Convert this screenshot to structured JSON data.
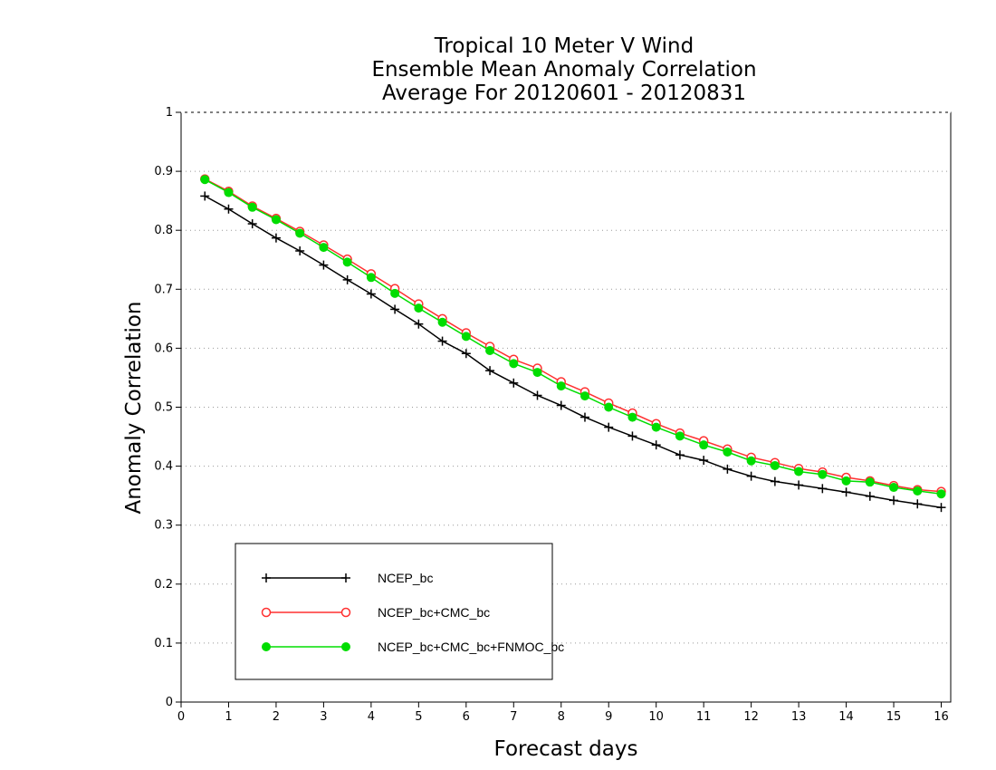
{
  "chart_data": {
    "type": "line",
    "title_lines": [
      "Tropical 10 Meter V Wind",
      "Ensemble Mean Anomaly Correlation",
      "Average For 20120601 - 20120831"
    ],
    "xlabel": "Forecast days",
    "ylabel": "Anomaly Correlation",
    "xlim": [
      0,
      16.2
    ],
    "ylim": [
      0,
      1
    ],
    "xticks": [
      "0",
      "1",
      "2",
      "3",
      "4",
      "5",
      "6",
      "7",
      "8",
      "9",
      "10",
      "11",
      "12",
      "13",
      "14",
      "15",
      "16"
    ],
    "yticks": [
      "0",
      "0.1",
      "0.2",
      "0.3",
      "0.4",
      "0.5",
      "0.6",
      "0.7",
      "0.8",
      "0.9",
      "1"
    ],
    "grid": "horizontal dotted",
    "legend_position": "bottom-left",
    "x": [
      0.5,
      1,
      1.5,
      2,
      2.5,
      3,
      3.5,
      4,
      4.5,
      5,
      5.5,
      6,
      6.5,
      7,
      7.5,
      8,
      8.5,
      9,
      9.5,
      10,
      10.5,
      11,
      11.5,
      12,
      12.5,
      13,
      13.5,
      14,
      14.5,
      15,
      15.5,
      16
    ],
    "series": [
      {
        "name": "NCEP_bc",
        "color": "#000000",
        "marker": "plus",
        "values": [
          0.858,
          0.836,
          0.811,
          0.787,
          0.765,
          0.741,
          0.716,
          0.692,
          0.666,
          0.641,
          0.612,
          0.591,
          0.562,
          0.541,
          0.52,
          0.503,
          0.483,
          0.466,
          0.451,
          0.436,
          0.419,
          0.41,
          0.395,
          0.383,
          0.374,
          0.368,
          0.362,
          0.356,
          0.349,
          0.342,
          0.336,
          0.33
        ]
      },
      {
        "name": "NCEP_bc+CMC_bc",
        "color": "#ff3030",
        "marker": "open-circle",
        "values": [
          0.887,
          0.866,
          0.841,
          0.82,
          0.798,
          0.775,
          0.751,
          0.726,
          0.701,
          0.675,
          0.65,
          0.626,
          0.603,
          0.581,
          0.566,
          0.543,
          0.526,
          0.507,
          0.49,
          0.472,
          0.456,
          0.443,
          0.429,
          0.415,
          0.406,
          0.396,
          0.39,
          0.381,
          0.375,
          0.367,
          0.36,
          0.357
        ]
      },
      {
        "name": "NCEP_bc+CMC_bc+FNMOC_bc",
        "color": "#00dd00",
        "marker": "filled-circle",
        "values": [
          0.886,
          0.864,
          0.839,
          0.818,
          0.795,
          0.771,
          0.746,
          0.72,
          0.693,
          0.668,
          0.644,
          0.62,
          0.596,
          0.574,
          0.559,
          0.536,
          0.519,
          0.5,
          0.483,
          0.466,
          0.451,
          0.436,
          0.424,
          0.409,
          0.401,
          0.391,
          0.386,
          0.375,
          0.373,
          0.364,
          0.358,
          0.353
        ]
      }
    ]
  }
}
